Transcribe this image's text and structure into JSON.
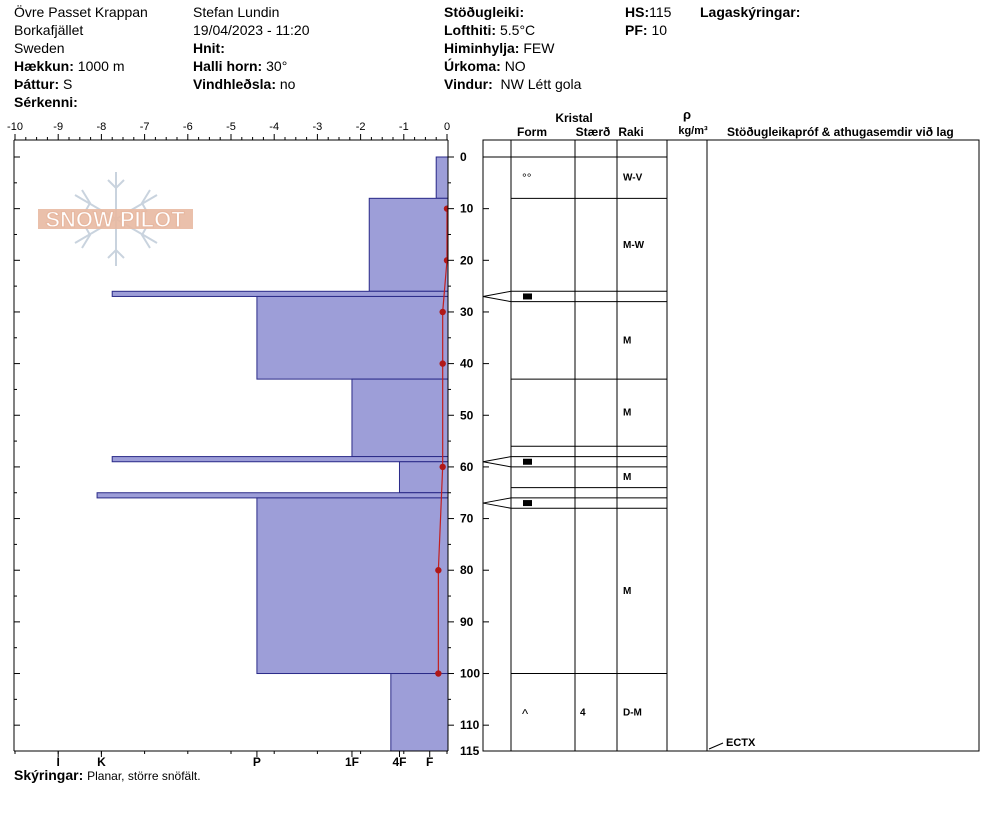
{
  "header": {
    "location": "Övre Passet Krappan",
    "range": "Borkafjället",
    "country": "Sweden",
    "elevation_label": "Hækkun:",
    "elevation": "1000 m",
    "aspect_label": "Þáttur:",
    "aspect": "S",
    "features_label": "Sérkenni:",
    "observer": "Stefan Lundin",
    "datetime": "19/04/2023 - 11:20",
    "coords_label": "Hnit:",
    "slope_label": "Halli horn:",
    "slope": "30°",
    "wind_loading_label": "Vindhleðsla:",
    "wind_loading": "no",
    "stability_label": "Stöðugleiki:",
    "air_temp_label": "Lofthiti:",
    "air_temp": "5.5°C",
    "sky_label": "Himinhylja:",
    "sky": "FEW",
    "precip_label": "Úrkoma:",
    "precip": "NO",
    "wind_label": "Vindur:",
    "wind": "NW Létt gola",
    "hs_label": "HS:",
    "hs": "115",
    "pf_label": "PF:",
    "pf": "10",
    "layer_notes_label": "Lagaskýringar:"
  },
  "footer": {
    "notes_label": "Skýringar:",
    "notes": "Planar, större snöfält."
  },
  "watermark": "SNOW PILOT",
  "chart_data": {
    "type": "snow_profile",
    "temperature_axis": {
      "ticks": [
        -10,
        -9,
        -8,
        -7,
        -6,
        -5,
        -4,
        -3,
        -2,
        -1,
        0
      ],
      "labels": [
        "-10",
        "-9",
        "-8",
        "-7",
        "-6",
        "-5",
        "-4",
        "-3",
        "-2",
        "-1",
        "0"
      ],
      "range": [
        -10,
        0
      ]
    },
    "depth_axis": {
      "ticks": [
        0,
        10,
        20,
        30,
        40,
        50,
        60,
        70,
        80,
        90,
        100,
        110,
        115
      ],
      "labels": [
        "0",
        "10",
        "20",
        "30",
        "40",
        "50",
        "60",
        "70",
        "80",
        "90",
        "100",
        "110",
        "115"
      ],
      "range": [
        0,
        115
      ]
    },
    "hardness_axis": {
      "labels": [
        "I",
        "K",
        "P",
        "1F",
        "4F",
        "F"
      ],
      "positions": [
        -9,
        -8,
        -4.4,
        -2.2,
        -1.1,
        -0.4
      ]
    },
    "hardness_profile": [
      {
        "top": 0,
        "bottom": 8,
        "hardness": -0.25
      },
      {
        "top": 8,
        "bottom": 26,
        "hardness": -1.8
      },
      {
        "top": 26,
        "bottom": 27,
        "hardness": -7.75
      },
      {
        "top": 27,
        "bottom": 43,
        "hardness": -4.4
      },
      {
        "top": 43,
        "bottom": 58,
        "hardness": -2.2
      },
      {
        "top": 58,
        "bottom": 59,
        "hardness": -7.75
      },
      {
        "top": 59,
        "bottom": 65,
        "hardness": -1.1
      },
      {
        "top": 65,
        "bottom": 66,
        "hardness": -8.1
      },
      {
        "top": 66,
        "bottom": 100,
        "hardness": -4.4
      },
      {
        "top": 100,
        "bottom": 115,
        "hardness": -1.3
      }
    ],
    "temperature_profile": [
      {
        "depth": 10,
        "temp": 0
      },
      {
        "depth": 20,
        "temp": 0
      },
      {
        "depth": 30,
        "temp": -0.1
      },
      {
        "depth": 40,
        "temp": -0.1
      },
      {
        "depth": 60,
        "temp": -0.1
      },
      {
        "depth": 80,
        "temp": -0.2
      },
      {
        "depth": 100,
        "temp": -0.2
      }
    ],
    "layer_table": {
      "headers": {
        "crystal": "Kristal",
        "form": "Form",
        "size": "Stærð",
        "moisture": "Raki",
        "rho": "ρ",
        "rho_unit": "kg/m³",
        "comments": "Stöðugleikapróf & athugasemdir við lag"
      },
      "boundaries": [
        0,
        8,
        26,
        28,
        43,
        56,
        58,
        60,
        64,
        66,
        68,
        100,
        115
      ],
      "layers": [
        {
          "top": 0,
          "bottom": 8,
          "form": "°°",
          "size": "",
          "moisture": "W-V"
        },
        {
          "top": 8,
          "bottom": 26,
          "form": "",
          "size": "",
          "moisture": "M-W"
        },
        {
          "top": 26,
          "bottom": 28,
          "form": "■",
          "size": "",
          "moisture": ""
        },
        {
          "top": 28,
          "bottom": 43,
          "form": "",
          "size": "",
          "moisture": "M"
        },
        {
          "top": 43,
          "bottom": 56,
          "form": "",
          "size": "",
          "moisture": "M"
        },
        {
          "top": 58,
          "bottom": 60,
          "form": "■",
          "size": "",
          "moisture": ""
        },
        {
          "top": 60,
          "bottom": 64,
          "form": "",
          "size": "",
          "moisture": "M"
        },
        {
          "top": 66,
          "bottom": 68,
          "form": "■",
          "size": "",
          "moisture": ""
        },
        {
          "top": 68,
          "bottom": 100,
          "form": "",
          "size": "",
          "moisture": "M"
        },
        {
          "top": 100,
          "bottom": 115,
          "form": "^",
          "size": "4",
          "moisture": "D-M"
        }
      ],
      "test_result": {
        "depth": 115,
        "label": "ECTX"
      }
    }
  }
}
